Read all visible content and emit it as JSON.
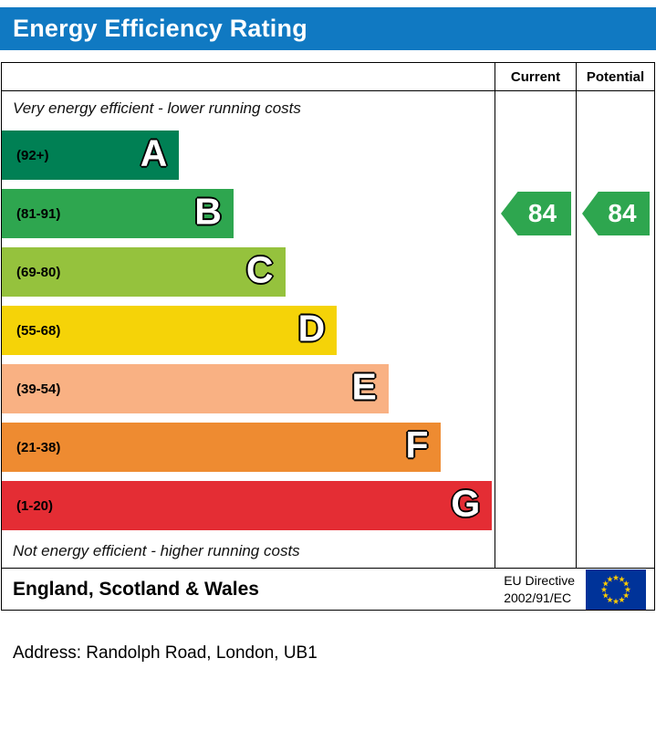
{
  "title": "Energy Efficiency Rating",
  "columns": {
    "current": "Current",
    "potential": "Potential"
  },
  "top_label": "Very energy efficient - lower running costs",
  "bottom_label": "Not energy efficient - higher running costs",
  "footer": {
    "region": "England, Scotland & Wales",
    "directive_line1": "EU Directive",
    "directive_line2": "2002/91/EC"
  },
  "address": "Address: Randolph Road, London, UB1",
  "colors": {
    "header_bg": "#1079c2",
    "badge_green": "#2ea64f",
    "eu_flag_blue": "#003399",
    "eu_star_yellow": "#ffcc00"
  },
  "chart_data": {
    "type": "bar",
    "title": "Energy Efficiency Rating",
    "categories": [
      "A",
      "B",
      "C",
      "D",
      "E",
      "F",
      "G"
    ],
    "bands": [
      {
        "letter": "A",
        "range": "(92+)",
        "min": 92,
        "max": 100,
        "color": "#008054",
        "width_pct": 36
      },
      {
        "letter": "B",
        "range": "(81-91)",
        "min": 81,
        "max": 91,
        "color": "#2ea64f",
        "width_pct": 47
      },
      {
        "letter": "C",
        "range": "(69-80)",
        "min": 69,
        "max": 80,
        "color": "#95c23d",
        "width_pct": 57.5
      },
      {
        "letter": "D",
        "range": "(55-68)",
        "min": 55,
        "max": 68,
        "color": "#f5d308",
        "width_pct": 68
      },
      {
        "letter": "E",
        "range": "(39-54)",
        "min": 39,
        "max": 54,
        "color": "#f9b183",
        "width_pct": 78.5
      },
      {
        "letter": "F",
        "range": "(21-38)",
        "min": 21,
        "max": 38,
        "color": "#ee8b31",
        "width_pct": 89
      },
      {
        "letter": "G",
        "range": "(1-20)",
        "min": 1,
        "max": 20,
        "color": "#e42d34",
        "width_pct": 99.5
      }
    ],
    "current": 84,
    "potential": 84,
    "current_band": "B",
    "potential_band": "B",
    "legend_position": "none",
    "grid": false
  }
}
